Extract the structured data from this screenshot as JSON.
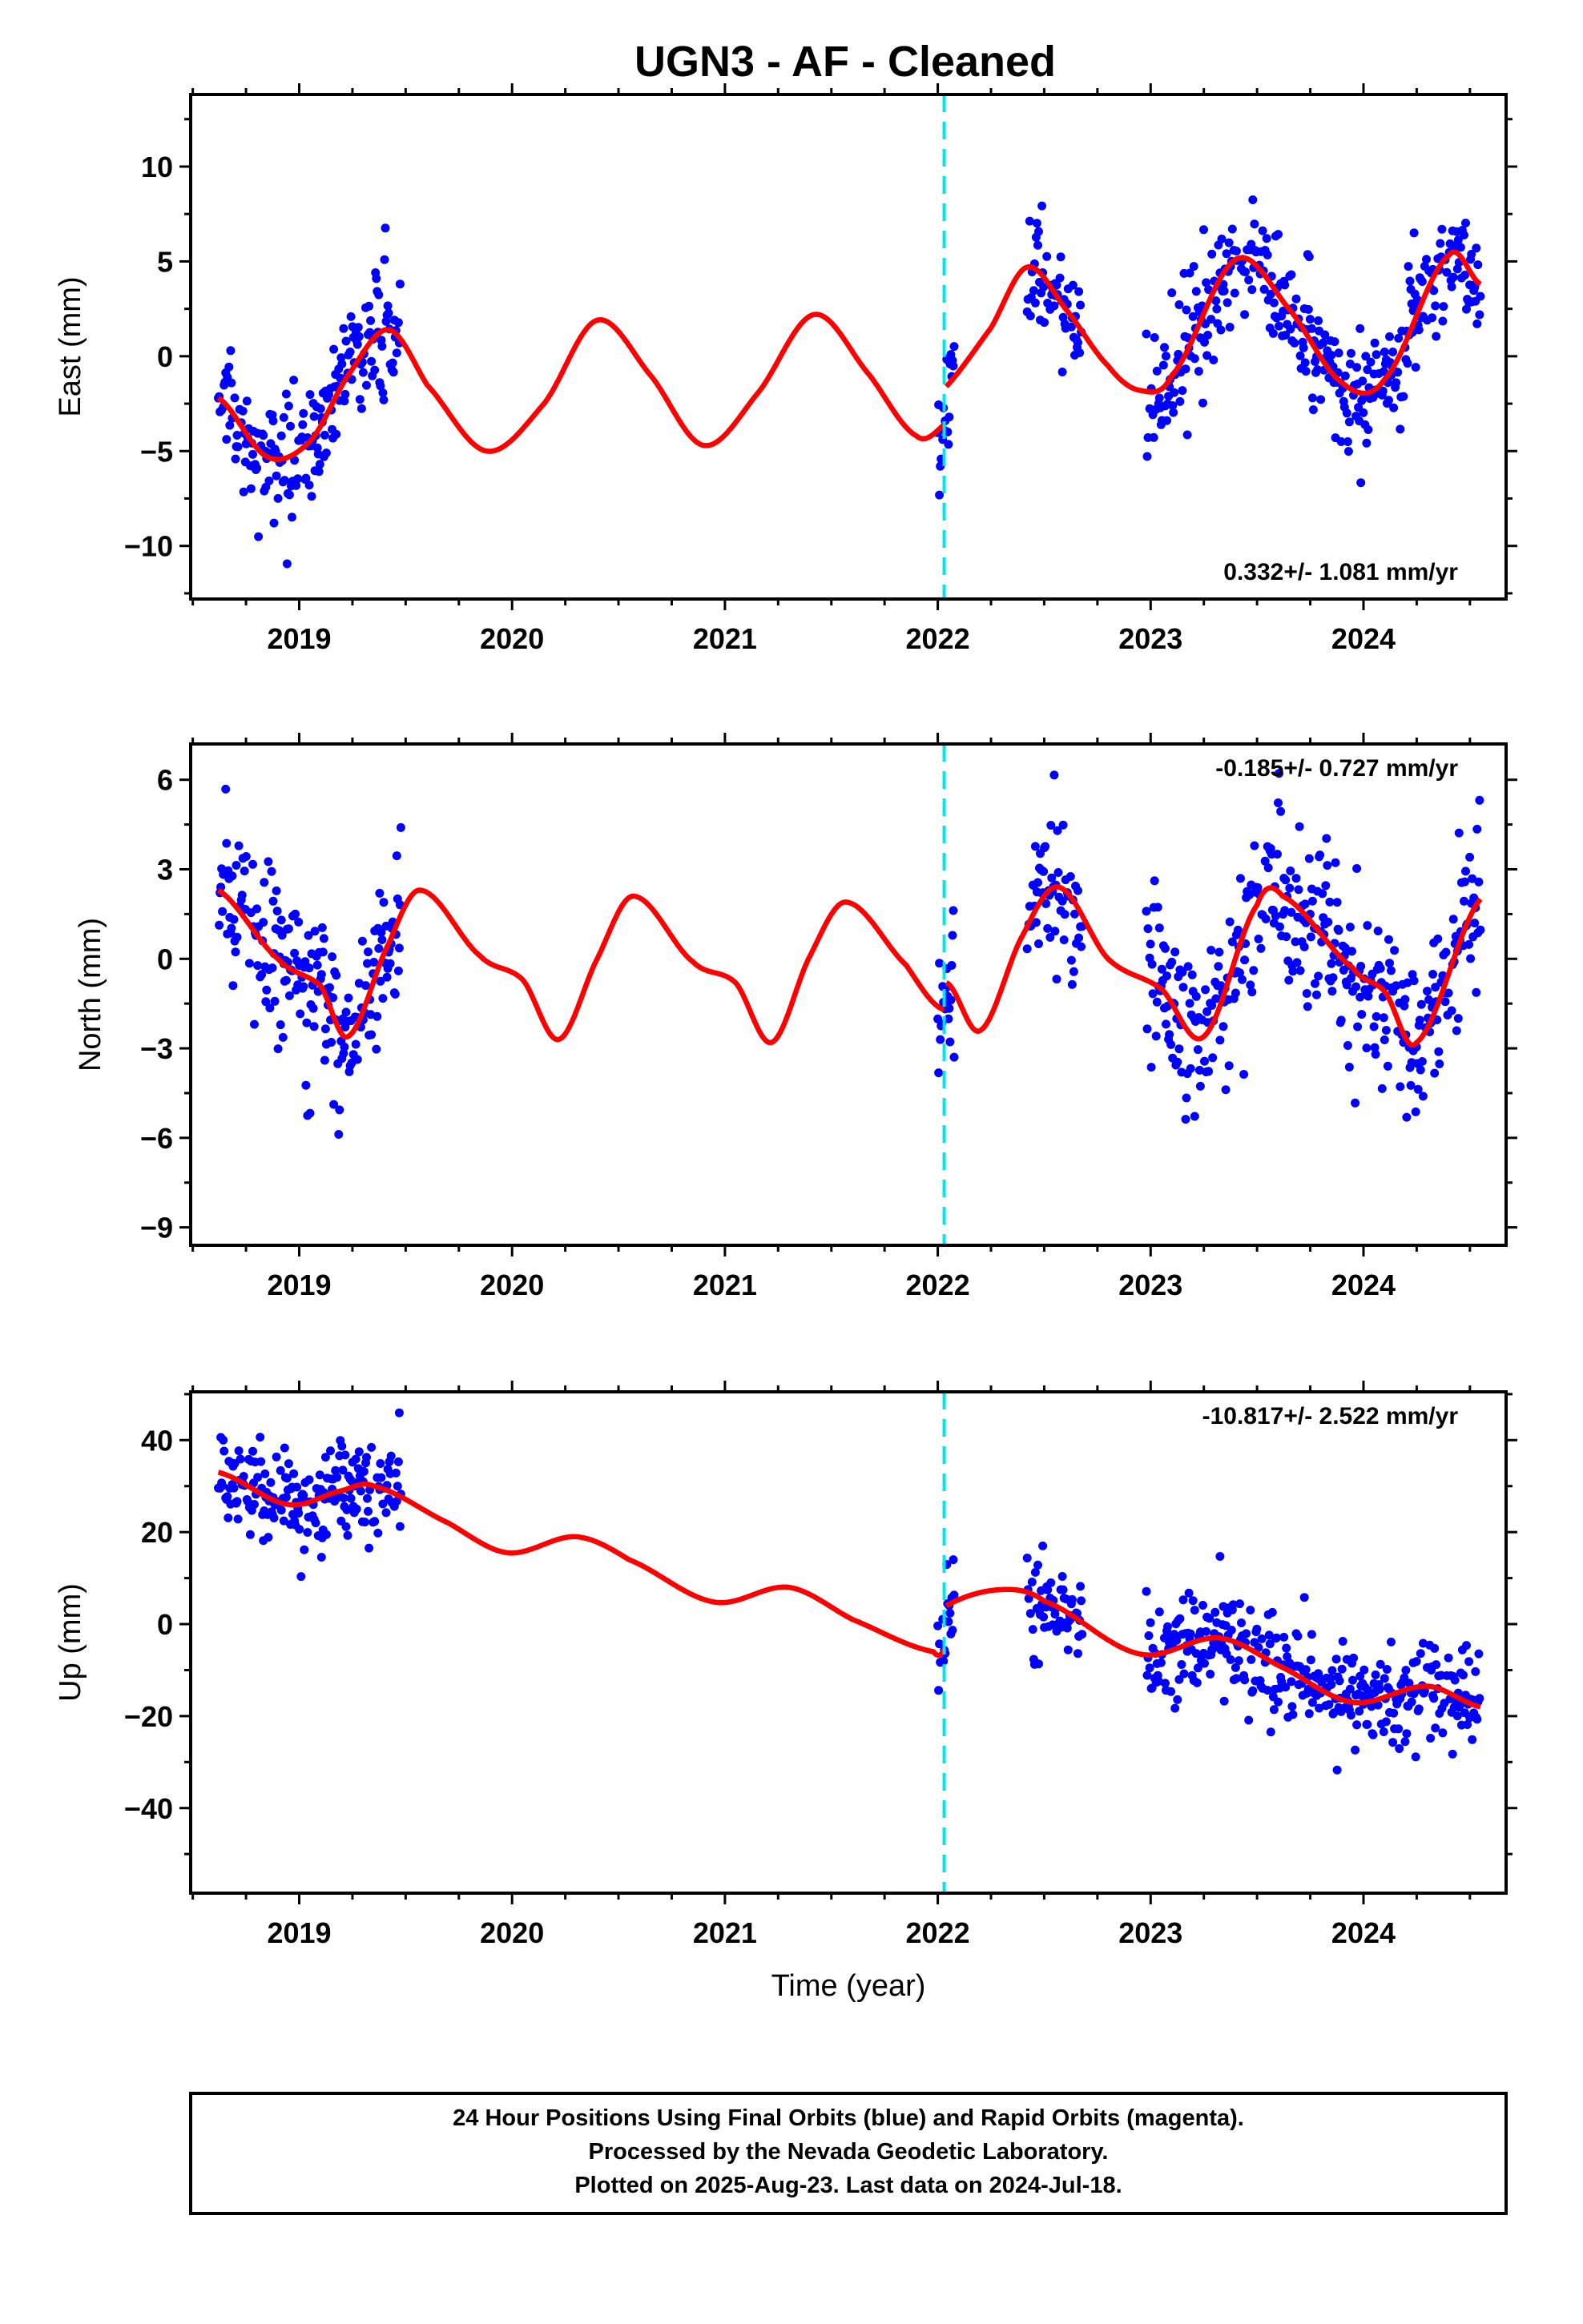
{
  "title": "UGN3  - AF - Cleaned",
  "footer": {
    "line1": "24 Hour Positions Using Final Orbits (blue) and Rapid Orbits (magenta).",
    "line2": "Processed by the Nevada Geodetic Laboratory.",
    "line3": "Plotted on 2025-Aug-23. Last data on 2024-Jul-18."
  },
  "colors": {
    "data": "#0000ff",
    "model": "#ff0000",
    "break": "#00e5ee",
    "axis": "#000000"
  },
  "chart_data": [
    {
      "type": "scatter",
      "ylabel": "East (mm)",
      "xlabel": "",
      "xlim": [
        2018.49,
        2024.67
      ],
      "ylim": [
        -12.8,
        13.8
      ],
      "xticks": [
        2019,
        2020,
        2021,
        2022,
        2023,
        2024
      ],
      "xtick_labels": [
        "2019",
        "2020",
        "2021",
        "2022",
        "2023",
        "2024"
      ],
      "yticks": [
        -10,
        -5,
        0,
        5,
        10
      ],
      "ytick_labels": [
        "−10",
        "−5",
        "0",
        "5",
        "10"
      ],
      "rate_label": "0.332+/- 1.081 mm/yr",
      "rate_position": "bottom-right",
      "break_epoch": 2022.03,
      "data_segments": [
        [
          2018.62,
          2019.48
        ],
        [
          2022.0,
          2022.08
        ],
        [
          2022.42,
          2022.68
        ],
        [
          2022.98,
          2024.55
        ]
      ],
      "model": {
        "knots_x": [
          2018.62,
          2018.85,
          2019.05,
          2019.23,
          2019.42,
          2019.6,
          2019.88,
          2020.15,
          2020.4,
          2020.65,
          2020.9,
          2021.15,
          2021.42,
          2021.68,
          2021.9,
          2022.03,
          2022.04,
          2022.25,
          2022.42,
          2022.6,
          2022.8,
          2022.95,
          2023.1,
          2023.4,
          2023.65,
          2023.9,
          2024.1,
          2024.4,
          2024.55
        ],
        "knots_y": [
          -2.2,
          -5.3,
          -4.5,
          -1.0,
          1.4,
          -1.5,
          -5.0,
          -2.5,
          1.9,
          -1.0,
          -4.7,
          -2.0,
          2.2,
          -1.0,
          -4.2,
          -3.6,
          -1.6,
          1.5,
          4.7,
          2.5,
          -0.5,
          -1.8,
          -1.0,
          5.1,
          2.5,
          -1.4,
          -1.2,
          5.3,
          3.8
        ],
        "y_offsets_by_segment": []
      },
      "noise_sd": 1.6
    },
    {
      "type": "scatter",
      "ylabel": "North (mm)",
      "xlabel": "",
      "xlim": [
        2018.49,
        2024.67
      ],
      "ylim": [
        -9.6,
        7.2
      ],
      "xticks": [
        2019,
        2020,
        2021,
        2022,
        2023,
        2024
      ],
      "xtick_labels": [
        "2019",
        "2020",
        "2021",
        "2022",
        "2023",
        "2024"
      ],
      "yticks": [
        -9,
        -6,
        -3,
        0,
        3,
        6
      ],
      "ytick_labels": [
        "−9",
        "−6",
        "−3",
        "0",
        "3",
        "6"
      ],
      "rate_label": "-0.185+/- 0.727 mm/yr",
      "rate_position": "top-right",
      "break_epoch": 2022.03,
      "data_segments": [
        [
          2018.62,
          2019.48
        ],
        [
          2022.0,
          2022.08
        ],
        [
          2022.42,
          2022.68
        ],
        [
          2022.98,
          2024.55
        ]
      ],
      "model": {
        "knots_x": [
          2018.62,
          2018.9,
          2019.1,
          2019.23,
          2019.42,
          2019.57,
          2019.85,
          2020.05,
          2020.22,
          2020.4,
          2020.57,
          2020.85,
          2021.05,
          2021.22,
          2021.4,
          2021.57,
          2021.85,
          2022.03,
          2022.04,
          2022.2,
          2022.4,
          2022.57,
          2022.8,
          2023.05,
          2023.25,
          2023.5,
          2023.62,
          2023.95,
          2024.1,
          2024.25,
          2024.55
        ],
        "knots_y": [
          2.3,
          0.0,
          -0.9,
          -2.6,
          0.5,
          2.3,
          0.1,
          -0.7,
          -2.7,
          0.0,
          2.1,
          -0.1,
          -0.8,
          -2.8,
          0.1,
          1.9,
          -0.2,
          -1.7,
          -0.8,
          -2.4,
          0.8,
          2.4,
          0.0,
          -1.0,
          -2.6,
          1.8,
          2.1,
          -0.3,
          -1.1,
          -2.8,
          2.0
        ],
        "y_offsets_by_segment": []
      },
      "noise_sd": 1.4
    },
    {
      "type": "scatter",
      "ylabel": "Up (mm)",
      "xlabel": "Time (year)",
      "xlim": [
        2018.49,
        2024.67
      ],
      "ylim": [
        -58.5,
        50.5
      ],
      "xticks": [
        2019,
        2020,
        2021,
        2022,
        2023,
        2024
      ],
      "xtick_labels": [
        "2019",
        "2020",
        "2021",
        "2022",
        "2023",
        "2024"
      ],
      "yticks": [
        -40,
        -20,
        0,
        20,
        40
      ],
      "ytick_labels": [
        "−40",
        "−20",
        "0",
        "20",
        "40"
      ],
      "rate_label": "-10.817+/- 2.522 mm/yr",
      "rate_position": "top-right",
      "break_epoch": 2022.03,
      "data_segments": [
        [
          2018.62,
          2019.48
        ],
        [
          2022.0,
          2022.08
        ],
        [
          2022.42,
          2022.68
        ],
        [
          2022.98,
          2024.55
        ]
      ],
      "model": {
        "knots_x": [
          2018.62,
          2018.95,
          2019.2,
          2019.35,
          2019.7,
          2019.98,
          2020.3,
          2020.55,
          2020.95,
          2021.3,
          2021.6,
          2021.98,
          2022.03,
          2022.04,
          2022.3,
          2022.5,
          2022.95,
          2023.32,
          2023.6,
          2023.95,
          2024.3,
          2024.55
        ],
        "knots_y": [
          33.0,
          26.0,
          29.0,
          30.0,
          22.0,
          15.5,
          19.0,
          14.0,
          4.8,
          8.0,
          1.0,
          -6.0,
          -5.5,
          4.0,
          7.5,
          5.0,
          -6.5,
          -3.0,
          -9.0,
          -17.0,
          -13.5,
          -18.0
        ],
        "y_offsets_by_segment": []
      },
      "noise_sd": 5.5
    }
  ]
}
